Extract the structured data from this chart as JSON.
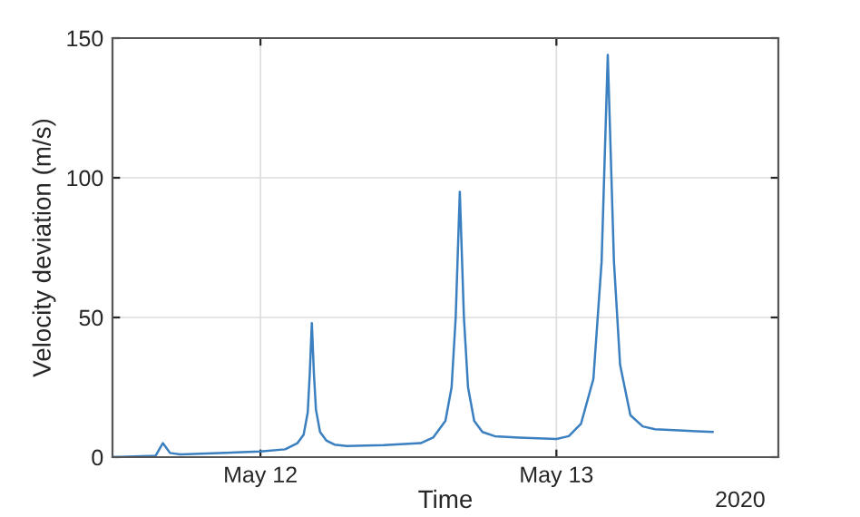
{
  "chart_data": {
    "type": "line",
    "xlabel": "Time",
    "ylabel": "Velocity deviation (m/s)",
    "annotations": [
      "2020"
    ],
    "x": [
      "2020-05-11T12:00",
      "2020-05-11T15:30",
      "2020-05-11T16:05",
      "2020-05-11T16:40",
      "2020-05-11T17:30",
      "2020-05-12T00:00",
      "2020-05-12T02:00",
      "2020-05-12T03:00",
      "2020-05-12T03:30",
      "2020-05-12T03:50",
      "2020-05-12T04:00",
      "2020-05-12T04:10",
      "2020-05-12T04:20",
      "2020-05-12T04:30",
      "2020-05-12T04:50",
      "2020-05-12T05:20",
      "2020-05-12T06:00",
      "2020-05-12T07:00",
      "2020-05-12T10:00",
      "2020-05-12T13:00",
      "2020-05-12T14:00",
      "2020-05-12T15:00",
      "2020-05-12T15:30",
      "2020-05-12T15:50",
      "2020-05-12T16:10",
      "2020-05-12T16:30",
      "2020-05-12T16:50",
      "2020-05-12T17:20",
      "2020-05-12T18:00",
      "2020-05-12T19:00",
      "2020-05-12T21:00",
      "2020-05-13T00:00",
      "2020-05-13T01:00",
      "2020-05-13T02:00",
      "2020-05-13T03:00",
      "2020-05-13T03:40",
      "2020-05-13T04:10",
      "2020-05-13T04:40",
      "2020-05-13T05:10",
      "2020-05-13T06:00",
      "2020-05-13T07:00",
      "2020-05-13T08:00",
      "2020-05-13T12:40"
    ],
    "series": [
      {
        "color": "#3a7fc0",
        "values": [
          0,
          0.5,
          5,
          1.5,
          1,
          2,
          2.8,
          5,
          8,
          16,
          30,
          48,
          30,
          17,
          9,
          6,
          4.5,
          4,
          4.3,
          5,
          7,
          13,
          25,
          50,
          95,
          50,
          25,
          13,
          9,
          7.5,
          7,
          6.5,
          7.5,
          12,
          28,
          70,
          144,
          70,
          33,
          15,
          11,
          10,
          9
        ]
      }
    ],
    "xlim": [
      "2020-05-11T12:00",
      "2020-05-13T18:00"
    ],
    "xticks": [
      {
        "value": "2020-05-12",
        "label": "May 12"
      },
      {
        "value": "2020-05-13",
        "label": "May 13"
      }
    ],
    "ylim": [
      0,
      150
    ],
    "yticks": [
      0,
      50,
      100,
      150
    ],
    "grid": true,
    "marker": "none",
    "line_style": "solid",
    "legend": false
  }
}
